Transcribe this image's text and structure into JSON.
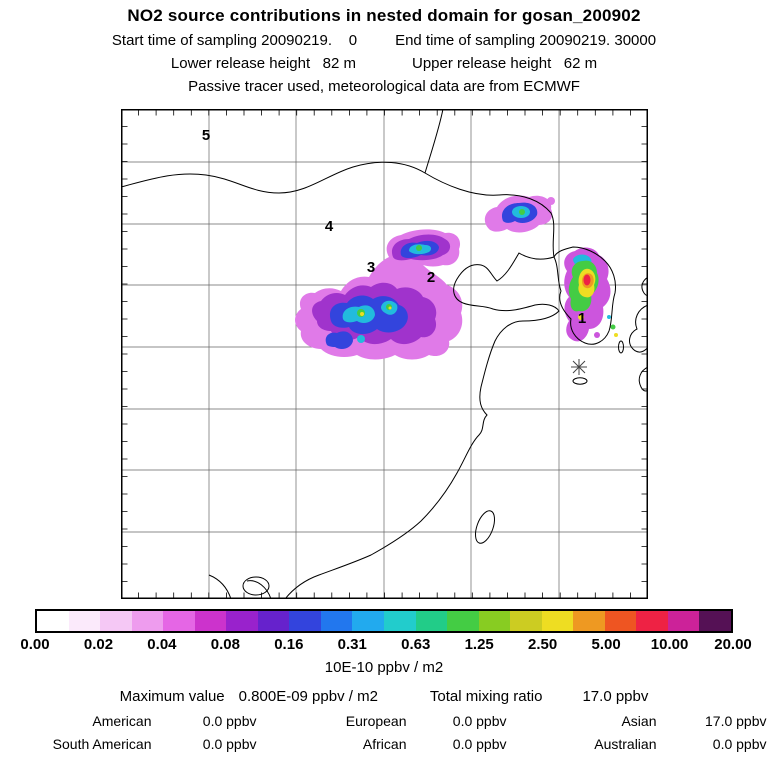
{
  "header": {
    "title": "NO2 source contributions in nested domain for gosan_200902",
    "start_time": "Start time of sampling 20090219.    0",
    "end_time": "End time of sampling 20090219. 30000",
    "lower_release": "Lower release height   82 m",
    "upper_release": "Upper release height   62 m",
    "tracer_note": "Passive tracer used, meteorological data are from ECMWF"
  },
  "map": {
    "markers": [
      {
        "label": "1"
      },
      {
        "label": "2"
      },
      {
        "label": "3"
      },
      {
        "label": "4"
      },
      {
        "label": "5"
      }
    ],
    "receptor_symbol": "asterisk-star"
  },
  "colorbar": {
    "tick_labels": [
      "0.00",
      "0.02",
      "0.04",
      "0.08",
      "0.16",
      "0.31",
      "0.63",
      "1.25",
      "2.50",
      "5.00",
      "10.00",
      "20.00"
    ],
    "unit_label": "10E-10 ppbv / m2",
    "colors": [
      "#ffffff",
      "#fbeafb",
      "#f5c8f5",
      "#ee9cee",
      "#e566e5",
      "#cc33cc",
      "#9922cc",
      "#6622cc",
      "#3344dd",
      "#2277ee",
      "#22aaee",
      "#22cccc",
      "#22cc88",
      "#44cc44",
      "#88cc22",
      "#cccc22",
      "#eedd22",
      "#ee9922",
      "#ee5522",
      "#ee2244",
      "#cc2299",
      "#551155"
    ]
  },
  "stats": {
    "max_label": "Maximum value",
    "max_value": "0.800E-09 ppbv / m2",
    "total_label": "Total mixing ratio",
    "total_value": "17.0 ppbv",
    "rows": [
      [
        {
          "name": "American",
          "value": "0.0 ppbv"
        },
        {
          "name": "European",
          "value": "0.0 ppbv"
        },
        {
          "name": "Asian",
          "value": "17.0 ppbv"
        }
      ],
      [
        {
          "name": "South American",
          "value": "0.0 ppbv"
        },
        {
          "name": "African",
          "value": "0.0 ppbv"
        },
        {
          "name": "Australian",
          "value": "0.0 ppbv"
        }
      ]
    ]
  },
  "chart_data": {
    "type": "heatmap",
    "title": "NO2 source contributions in nested domain for gosan_200902",
    "subtitle_lines": [
      "Start time of sampling 20090219.    0    End time of sampling 20090219. 30000",
      "Lower release height   82 m    Upper release height   62 m",
      "Passive tracer used, meteorological data are from ECMWF"
    ],
    "units": "10E-10 ppbv / m2",
    "colorbar_levels": [
      0.0,
      0.02,
      0.04,
      0.08,
      0.16,
      0.31,
      0.63,
      1.25,
      2.5,
      5.0,
      10.0,
      20.0
    ],
    "colorbar_scale": "logarithmic",
    "legend_position": "bottom",
    "grid": true,
    "source_markers": [
      "1",
      "2",
      "3",
      "4",
      "5"
    ],
    "maximum_value": "0.800E-09 ppbv / m2",
    "total_mixing_ratio_ppbv": 17.0,
    "contributions_ppbv": {
      "American": 0.0,
      "European": 0.0,
      "Asian": 17.0,
      "South American": 0.0,
      "African": 0.0,
      "Australian": 0.0
    }
  }
}
